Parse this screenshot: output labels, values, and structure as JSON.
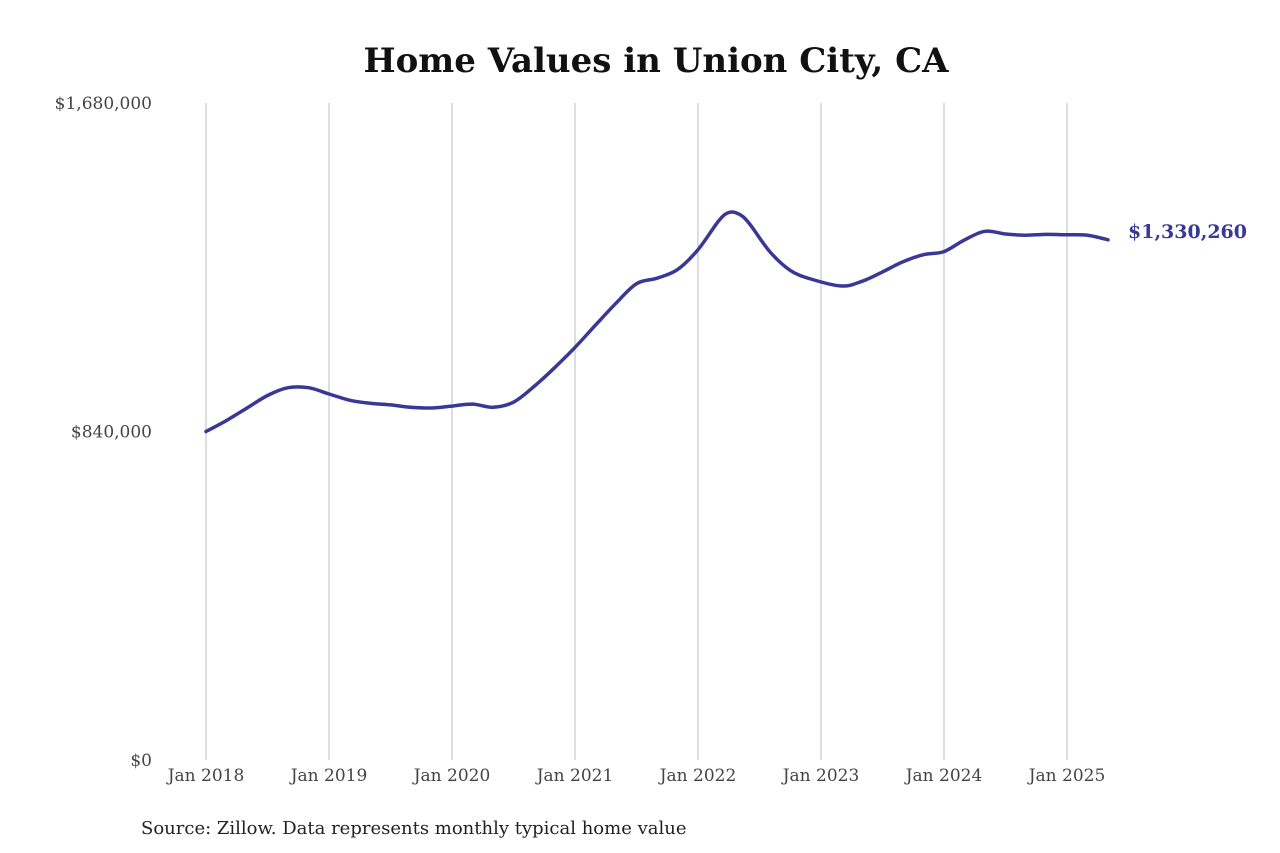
{
  "chart_data": {
    "type": "line",
    "title": "Home Values in Union City, CA",
    "source": "Source: Zillow. Data represents monthly typical home value",
    "series_color": "#3a3896",
    "grid": "vertical",
    "ylim": [
      0,
      1680000
    ],
    "yticks": [
      0,
      840000,
      1680000
    ],
    "ytick_labels": [
      "$0",
      "$840,000",
      "$1,680,000"
    ],
    "xlim": [
      "2018-01",
      "2025-05"
    ],
    "xtick_labels": [
      "Jan 2018",
      "Jan 2019",
      "Jan 2020",
      "Jan 2021",
      "Jan 2022",
      "Jan 2023",
      "Jan 2024",
      "Jan 2025"
    ],
    "end_label": "$1,330,260",
    "series": [
      {
        "x": [
          "2018-01",
          "2018-03",
          "2018-05",
          "2018-07",
          "2018-09",
          "2018-11",
          "2019-01",
          "2019-03",
          "2019-05",
          "2019-07",
          "2019-09",
          "2019-11",
          "2020-01",
          "2020-03",
          "2020-05",
          "2020-07",
          "2020-09",
          "2020-11",
          "2021-01",
          "2021-03",
          "2021-05",
          "2021-07",
          "2021-09",
          "2021-11",
          "2022-01",
          "2022-03",
          "2022-04",
          "2022-05",
          "2022-06",
          "2022-08",
          "2022-10",
          "2022-12",
          "2023-03",
          "2023-05",
          "2023-07",
          "2023-09",
          "2023-11",
          "2024-01",
          "2024-03",
          "2024-05",
          "2024-07",
          "2024-09",
          "2024-11",
          "2025-01",
          "2025-03",
          "2025-05"
        ],
        "values": [
          840000,
          868000,
          900000,
          932000,
          952000,
          952000,
          936000,
          920000,
          912000,
          908000,
          902000,
          900000,
          905000,
          910000,
          902000,
          915000,
          955000,
          1003000,
          1055000,
          1112000,
          1168000,
          1218000,
          1232000,
          1254000,
          1305000,
          1378000,
          1400000,
          1396000,
          1372000,
          1300000,
          1252000,
          1230000,
          1212000,
          1224000,
          1248000,
          1274000,
          1292000,
          1300000,
          1330000,
          1352000,
          1345000,
          1342000,
          1344000,
          1343000,
          1342000,
          1330260
        ]
      }
    ]
  }
}
